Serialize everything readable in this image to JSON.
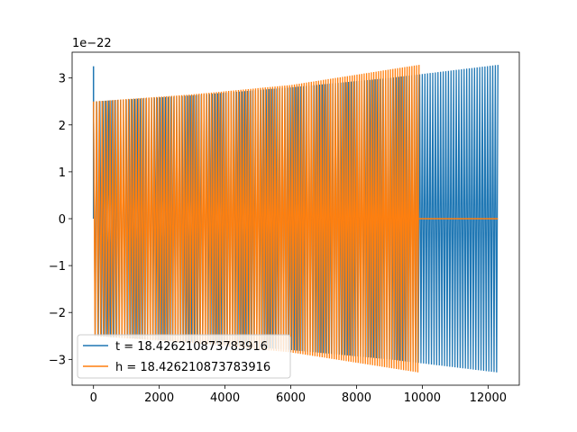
{
  "chart_data": {
    "type": "line",
    "title": "",
    "xlabel": "",
    "ylabel": "",
    "y_offset_label": "1e−22",
    "xlim": [
      -650,
      12950
    ],
    "ylim": [
      -3.55,
      3.55
    ],
    "y_scale_exponent": -22,
    "xticks": [
      0,
      2000,
      4000,
      6000,
      8000,
      10000,
      12000
    ],
    "xtick_labels": [
      "0",
      "2000",
      "4000",
      "6000",
      "8000",
      "10000",
      "12000"
    ],
    "yticks": [
      -3,
      -2,
      -1,
      0,
      1,
      2,
      3
    ],
    "ytick_labels": [
      "−3",
      "−2",
      "−1",
      "0",
      "1",
      "2",
      "3"
    ],
    "grid": false,
    "legend_position": "lower-left",
    "series": [
      {
        "name": "t = 18.426210873783916",
        "color": "#1f77b4",
        "x_range": [
          0,
          12300
        ],
        "amplitude_envelope": [
          [
            0,
            2.5
          ],
          [
            3000,
            2.63
          ],
          [
            6000,
            2.8
          ],
          [
            9000,
            3.0
          ],
          [
            12300,
            3.28
          ]
        ],
        "initial_spike": 3.25,
        "description_values": "chirp oscillation, amplitude rising from ~2.5 to ~3.28 (x1e-22)"
      },
      {
        "name": "h = 18.426210873783916",
        "color": "#ff7f0e",
        "x_range": [
          0,
          9900
        ],
        "amplitude_envelope": [
          [
            0,
            2.5
          ],
          [
            3000,
            2.65
          ],
          [
            6000,
            2.85
          ],
          [
            9900,
            3.28
          ]
        ],
        "tail": {
          "x_range": [
            9900,
            12300
          ],
          "value": 0
        },
        "description_values": "chirp oscillation ending at x~9900, then flat at 0"
      }
    ]
  }
}
